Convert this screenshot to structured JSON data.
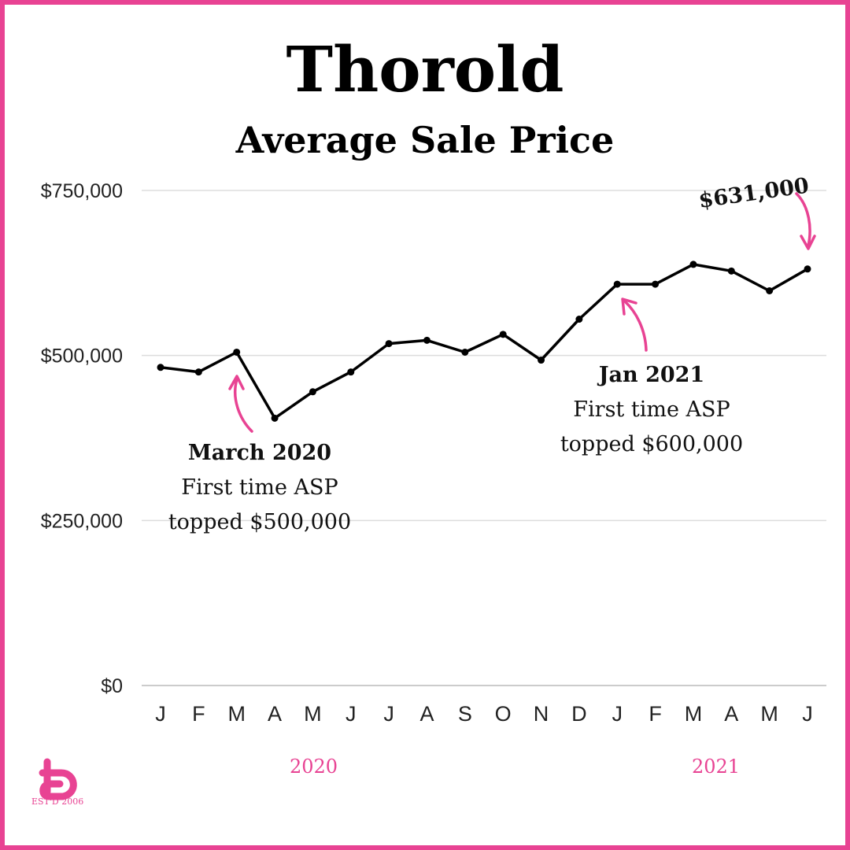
{
  "chart_data": {
    "type": "line",
    "title": "Thorold",
    "subtitle": "Average Sale Price",
    "x": [
      "J",
      "F",
      "M",
      "A",
      "M",
      "J",
      "J",
      "A",
      "S",
      "O",
      "N",
      "D",
      "J",
      "F",
      "M",
      "A",
      "M",
      "J"
    ],
    "series": [
      {
        "values": [
          482000,
          475000,
          505000,
          405000,
          445000,
          475000,
          518000,
          523000,
          505000,
          532000,
          493000,
          555000,
          608000,
          608000,
          638000,
          628000,
          598000,
          631000
        ]
      }
    ],
    "y_ticks": [
      "$750,000",
      "$500,000",
      "$250,000",
      "$0"
    ],
    "y_tick_values": [
      750000,
      500000,
      250000,
      0
    ],
    "ylim": [
      0,
      750000
    ],
    "grid": true,
    "year_labels": [
      "2020",
      "2021"
    ],
    "annotations": [
      {
        "head": "March 2020",
        "line1": "First time ASP",
        "line2": "topped $500,000"
      },
      {
        "head": "Jan 2021",
        "line1": "First time ASP",
        "line2": "topped $600,000"
      }
    ],
    "callout": "$631,000",
    "colors": {
      "accent": "#e84393",
      "line": "#000000",
      "grid": "#dddddd"
    }
  },
  "logo": {
    "est": "EST'D 2006"
  }
}
